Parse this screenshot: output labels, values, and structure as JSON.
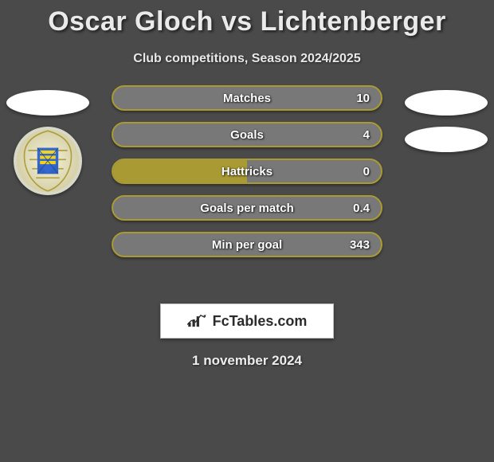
{
  "title": "Oscar Gloch vs Lichtenberger",
  "subtitle": "Club competitions, Season 2024/2025",
  "footer_date": "1 november 2024",
  "logo_text": "FcTables.com",
  "colors": {
    "left_accent": "#a99a33",
    "right_accent": "#787878",
    "ellipse": "#ffffff",
    "bg": "#4a4a4a"
  },
  "bars": [
    {
      "label": "Matches",
      "left_val": "",
      "right_val": "10",
      "left_pct": 0,
      "right_pct": 100
    },
    {
      "label": "Goals",
      "left_val": "",
      "right_val": "4",
      "left_pct": 0,
      "right_pct": 100
    },
    {
      "label": "Hattricks",
      "left_val": "",
      "right_val": "0",
      "left_pct": 50,
      "right_pct": 50
    },
    {
      "label": "Goals per match",
      "left_val": "",
      "right_val": "0.4",
      "left_pct": 0,
      "right_pct": 100
    },
    {
      "label": "Min per goal",
      "left_val": "",
      "right_val": "343",
      "left_pct": 0,
      "right_pct": 100
    }
  ]
}
